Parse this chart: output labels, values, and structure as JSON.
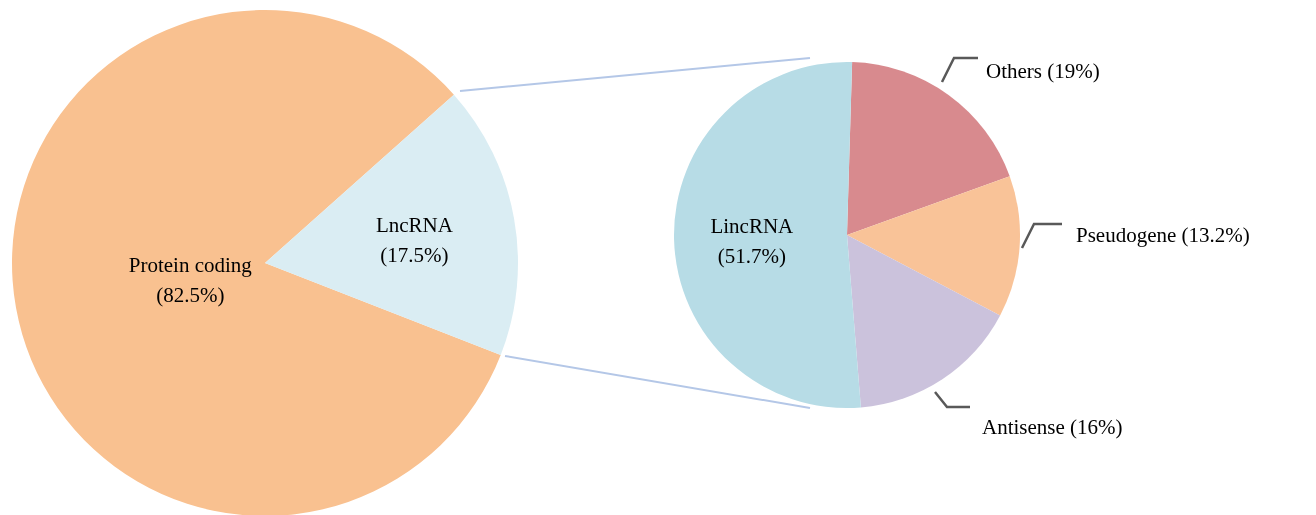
{
  "chart_data": [
    {
      "type": "pie",
      "categories": [
        "Protein coding",
        "LncRNA"
      ],
      "values": [
        82.5,
        17.5
      ],
      "value_labels": [
        "(82.5%)",
        "(17.5%)"
      ],
      "colors": [
        "#f9c190",
        "#daedf3"
      ]
    },
    {
      "type": "pie",
      "categories": [
        "Others",
        "Pseudogene",
        "Antisense",
        "LincRNA"
      ],
      "values": [
        19,
        13.2,
        16,
        51.7
      ],
      "value_labels": [
        "(19%)",
        "(13.2%)",
        "(16%)",
        "(51.7%)"
      ],
      "colors": [
        "#d88a8e",
        "#f9c398",
        "#cbc2dc",
        "#b7dce6"
      ]
    }
  ]
}
